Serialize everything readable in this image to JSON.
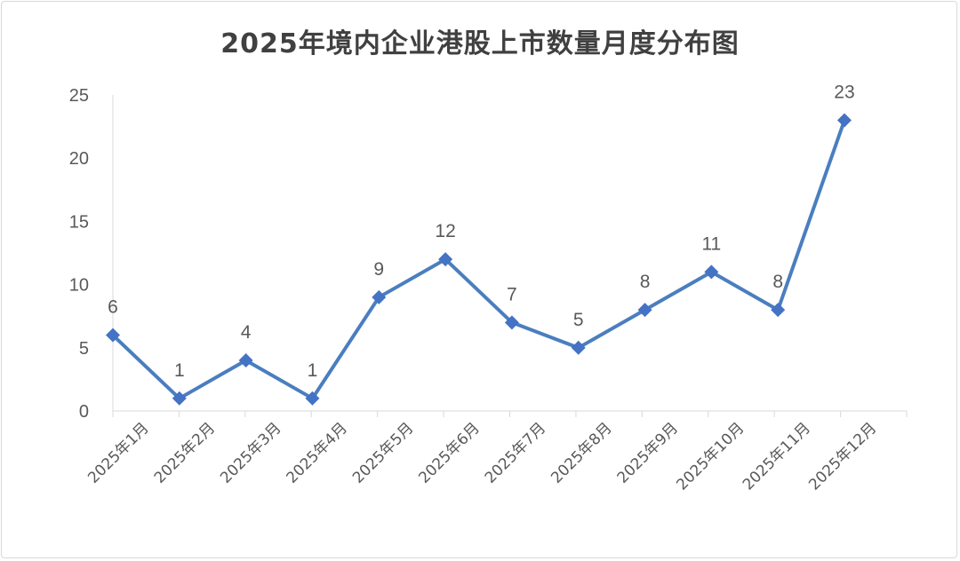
{
  "chart_data": {
    "type": "line",
    "title": "2025年境内企业港股上市数量月度分布图",
    "categories": [
      "2025年1月",
      "2025年2月",
      "2025年3月",
      "2025年4月",
      "2025年5月",
      "2025年6月",
      "2025年7月",
      "2025年8月",
      "2025年9月",
      "2025年10月",
      "2025年11月",
      "2025年12月"
    ],
    "values": [
      6,
      1,
      4,
      1,
      9,
      12,
      7,
      5,
      8,
      11,
      8,
      23
    ],
    "yticks": [
      "0",
      "5",
      "10",
      "15",
      "20",
      "25"
    ],
    "ylim": [
      0,
      25
    ],
    "data_labels": [
      "6",
      "1",
      "4",
      "1",
      "9",
      "12",
      "7",
      "5",
      "8",
      "11",
      "8",
      "23"
    ],
    "xlabel": "",
    "ylabel": "",
    "grid": false,
    "legend": "none",
    "colors": {
      "line": "#4a7ebf",
      "marker": "#4472c4",
      "axis": "#d9d9d9",
      "text": "#595959"
    }
  }
}
